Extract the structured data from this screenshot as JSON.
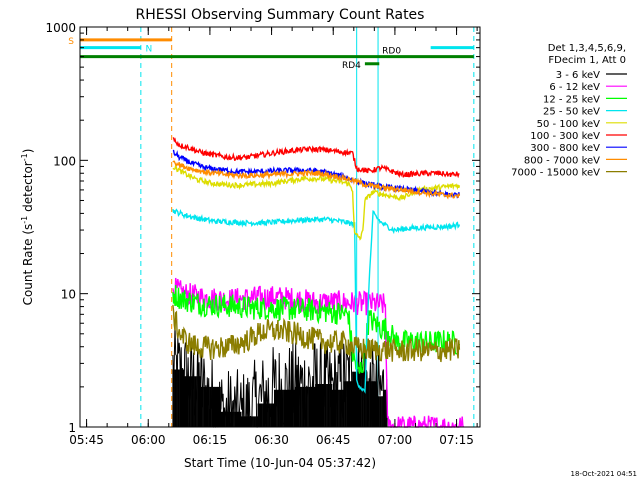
{
  "chart_data": {
    "type": "line",
    "title": "RHESSI Observing Summary Count Rates",
    "xlabel": "Start Time (10-Jun-04 05:37:42)",
    "ylabel": "Count Rate (s⁻¹ detector⁻¹)",
    "ylabel_parts": [
      "Count Rate (s",
      "-1",
      " detector",
      "-1",
      ")"
    ],
    "yscale": "log",
    "ylim": [
      1,
      1000
    ],
    "xlim_minutes": [
      5.7,
      103.0
    ],
    "x_unit": "minutes since 05:37:42",
    "x_ticks": [
      {
        "minute": 7.3,
        "label": "05:45"
      },
      {
        "minute": 22.3,
        "label": "06:00"
      },
      {
        "minute": 37.3,
        "label": "06:15"
      },
      {
        "minute": 52.3,
        "label": "06:30"
      },
      {
        "minute": 67.3,
        "label": "06:45"
      },
      {
        "minute": 82.3,
        "label": "07:00"
      },
      {
        "minute": 97.3,
        "label": "07:15"
      }
    ],
    "y_ticks": [
      {
        "value": 1,
        "label": "1"
      },
      {
        "value": 10,
        "label": "10"
      },
      {
        "value": 100,
        "label": "100"
      },
      {
        "value": 1000,
        "label": "1000"
      }
    ],
    "legend": {
      "position": "right",
      "header": [
        "Det 1,3,4,5,6,9,",
        "FDecim 1, Att 0"
      ]
    },
    "series": [
      {
        "name": "3 - 6 keV",
        "color": "#000000",
        "points": [
          [
            28.3,
            2.7
          ],
          [
            31,
            2.4
          ],
          [
            35,
            2.0
          ],
          [
            40,
            1.3
          ],
          [
            45,
            1.2
          ],
          [
            49,
            1.5
          ],
          [
            53,
            1.9
          ],
          [
            58,
            2.0
          ],
          [
            63,
            2.1
          ],
          [
            67,
            1.9
          ],
          [
            70,
            2.2
          ],
          [
            72,
            2.6
          ],
          [
            75,
            2.2
          ],
          [
            78,
            1.7
          ],
          [
            79.5,
            1.9
          ],
          [
            80.5,
            1.2
          ]
        ]
      },
      {
        "name": "6 - 12 keV",
        "color": "#ff00ff",
        "points": [
          [
            28.3,
            11
          ],
          [
            31,
            10
          ],
          [
            36,
            9.3
          ],
          [
            42,
            9.0
          ],
          [
            48,
            9.3
          ],
          [
            53,
            9.4
          ],
          [
            58,
            9.1
          ],
          [
            63,
            8.6
          ],
          [
            68,
            8.6
          ],
          [
            73,
            8.5
          ],
          [
            77,
            8.4
          ],
          [
            80,
            8.2
          ],
          [
            80.5,
            1.0
          ],
          [
            90,
            1.0
          ],
          [
            99,
            1.0
          ]
        ]
      },
      {
        "name": "12 - 25 keV",
        "color": "#00ff00",
        "points": [
          [
            28.3,
            10
          ],
          [
            31,
            9.0
          ],
          [
            36,
            8.3
          ],
          [
            42,
            8.1
          ],
          [
            48,
            7.8
          ],
          [
            53,
            7.8
          ],
          [
            58,
            7.6
          ],
          [
            63,
            7.5
          ],
          [
            68,
            7.2
          ],
          [
            71,
            7.0
          ],
          [
            72,
            3.5
          ],
          [
            73.5,
            2.5
          ],
          [
            74.5,
            3.0
          ],
          [
            76,
            6.5
          ],
          [
            79,
            5.5
          ],
          [
            80,
            5.5
          ],
          [
            83,
            4.3
          ],
          [
            87,
            4.4
          ],
          [
            91,
            4.3
          ],
          [
            95,
            4.4
          ],
          [
            98,
            4.2
          ]
        ]
      },
      {
        "name": "25 - 50 keV",
        "color": "#00e5ee",
        "points": [
          [
            28.3,
            42
          ],
          [
            31,
            39
          ],
          [
            34,
            37
          ],
          [
            38,
            35
          ],
          [
            42,
            34.5
          ],
          [
            46,
            34
          ],
          [
            50,
            34
          ],
          [
            54,
            34.5
          ],
          [
            58,
            35.5
          ],
          [
            62,
            36
          ],
          [
            66,
            36
          ],
          [
            70,
            34.5
          ],
          [
            72.5,
            33
          ],
          [
            73,
            2.2
          ],
          [
            75,
            1.8
          ],
          [
            76,
            12
          ],
          [
            77,
            40
          ],
          [
            79,
            34
          ],
          [
            82,
            30
          ],
          [
            86,
            31
          ],
          [
            91,
            31.5
          ],
          [
            96,
            32
          ],
          [
            98,
            33
          ]
        ]
      },
      {
        "name": "50 - 100 keV",
        "color": "#dddd00",
        "points": [
          [
            28.3,
            90
          ],
          [
            31,
            80
          ],
          [
            34,
            72
          ],
          [
            37,
            68
          ],
          [
            40,
            66
          ],
          [
            44,
            65
          ],
          [
            48,
            66
          ],
          [
            52,
            67
          ],
          [
            56,
            70
          ],
          [
            60,
            73
          ],
          [
            64,
            73
          ],
          [
            68,
            70
          ],
          [
            71,
            67
          ],
          [
            72,
            60
          ],
          [
            72.5,
            28
          ],
          [
            74,
            26
          ],
          [
            74.5,
            30
          ],
          [
            75,
            50
          ],
          [
            77,
            58
          ],
          [
            80,
            55
          ],
          [
            84,
            52
          ],
          [
            88,
            60
          ],
          [
            92,
            62
          ],
          [
            96,
            64
          ],
          [
            98,
            65
          ]
        ]
      },
      {
        "name": "100 - 300 keV",
        "color": "#ff0000",
        "points": [
          [
            28.3,
            145
          ],
          [
            30,
            130
          ],
          [
            32,
            125
          ],
          [
            35,
            115
          ],
          [
            38,
            110
          ],
          [
            42,
            105
          ],
          [
            46,
            105
          ],
          [
            50,
            110
          ],
          [
            54,
            115
          ],
          [
            57,
            118
          ],
          [
            61,
            121
          ],
          [
            64,
            121
          ],
          [
            67,
            118
          ],
          [
            70,
            115
          ],
          [
            72,
            113
          ],
          [
            73,
            87
          ],
          [
            76,
            83
          ],
          [
            79,
            88
          ],
          [
            82,
            82
          ],
          [
            84,
            78
          ],
          [
            87,
            79
          ],
          [
            90,
            80
          ],
          [
            93,
            80
          ],
          [
            96,
            78
          ],
          [
            98,
            79
          ]
        ]
      },
      {
        "name": "300 - 800 keV",
        "color": "#0000ff",
        "points": [
          [
            28.3,
            115
          ],
          [
            30,
            105
          ],
          [
            33,
            95
          ],
          [
            36,
            88
          ],
          [
            40,
            85
          ],
          [
            44,
            82
          ],
          [
            48,
            82
          ],
          [
            52,
            83
          ],
          [
            56,
            84
          ],
          [
            60,
            84
          ],
          [
            64,
            83
          ],
          [
            68,
            78
          ],
          [
            72,
            72
          ],
          [
            75,
            67
          ],
          [
            78,
            64
          ],
          [
            82,
            62
          ],
          [
            86,
            60
          ],
          [
            90,
            58
          ],
          [
            94,
            56
          ],
          [
            98,
            55
          ]
        ]
      },
      {
        "name": "800 - 7000 keV",
        "color": "#ff8c00",
        "points": [
          [
            28.3,
            100
          ],
          [
            30,
            92
          ],
          [
            33,
            86
          ],
          [
            36,
            82
          ],
          [
            40,
            79
          ],
          [
            44,
            77
          ],
          [
            48,
            77
          ],
          [
            52,
            78
          ],
          [
            56,
            79
          ],
          [
            60,
            80
          ],
          [
            64,
            80
          ],
          [
            68,
            76
          ],
          [
            72,
            71
          ],
          [
            75,
            66
          ],
          [
            78,
            63
          ],
          [
            82,
            61
          ],
          [
            86,
            59
          ],
          [
            90,
            57
          ],
          [
            94,
            55
          ],
          [
            98,
            54
          ]
        ]
      },
      {
        "name": "7000 - 15000 keV",
        "color": "#8b7d00",
        "points": [
          [
            28.3,
            7.0
          ],
          [
            30,
            5.0
          ],
          [
            32,
            4.3
          ],
          [
            34,
            4.0
          ],
          [
            38,
            3.9
          ],
          [
            42,
            4.0
          ],
          [
            46,
            4.4
          ],
          [
            50,
            5.2
          ],
          [
            54,
            5.3
          ],
          [
            58,
            5.0
          ],
          [
            62,
            4.6
          ],
          [
            66,
            4.3
          ],
          [
            70,
            4.3
          ],
          [
            73,
            3.9
          ],
          [
            76,
            3.8
          ],
          [
            80,
            3.8
          ],
          [
            84,
            3.7
          ],
          [
            88,
            3.8
          ],
          [
            92,
            3.7
          ],
          [
            96,
            3.8
          ],
          [
            98,
            3.8
          ]
        ]
      }
    ],
    "annotations": [
      {
        "label": "S",
        "color": "#ff8c00",
        "y": 800,
        "x_range": [
          5.7,
          28.0
        ],
        "kind": "bar"
      },
      {
        "label": "N",
        "color": "#00e5ee",
        "y": 700,
        "x_range": [
          5.7,
          20.5
        ],
        "kind": "bar"
      },
      {
        "label": "",
        "color": "#00e5ee",
        "y": 700,
        "x_range": [
          91.0,
          101.5
        ],
        "kind": "bar"
      },
      {
        "label": "RD0",
        "color": "#008000",
        "y": 600,
        "x_range": [
          5.7,
          101.5
        ],
        "kind": "bar"
      },
      {
        "label": "RD4",
        "color": "#008000",
        "y": 530,
        "x_range": [
          75.0,
          78.5
        ],
        "kind": "bar"
      }
    ],
    "vertical_markers": [
      {
        "minute": 20.5,
        "color": "#00e5ee",
        "style": "dashed"
      },
      {
        "minute": 28.0,
        "color": "#ff8c00",
        "style": "dashed"
      },
      {
        "minute": 101.5,
        "color": "#00e5ee",
        "style": "dashed"
      },
      {
        "minute": 73.0,
        "color": "#00e5ee",
        "style": "solid"
      },
      {
        "minute": 78.2,
        "color": "#00e5ee",
        "style": "solid"
      }
    ],
    "timestamp": "18-Oct-2021 04:51",
    "gridlines": false
  }
}
